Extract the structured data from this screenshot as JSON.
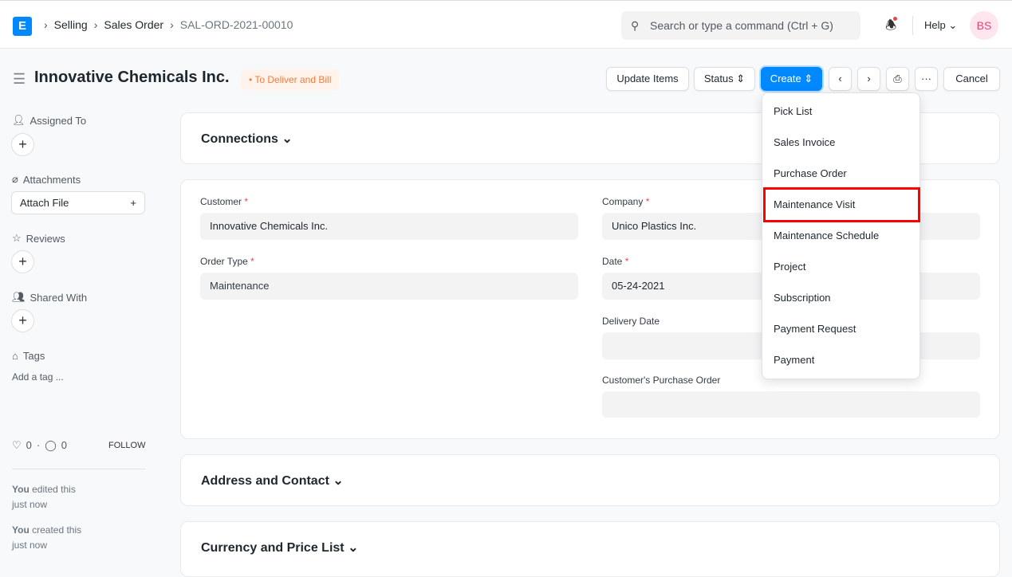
{
  "nav": {
    "logo": "E",
    "breadcrumbs": [
      "Selling",
      "Sales Order",
      "SAL-ORD-2021-00010"
    ],
    "search_placeholder": "Search or type a command (Ctrl + G)",
    "help": "Help",
    "avatar": "BS"
  },
  "page": {
    "title": "Innovative Chemicals Inc.",
    "status": "To Deliver and Bill",
    "status_color": "#f27c3a"
  },
  "toolbar": {
    "update_items": "Update Items",
    "status": "Status",
    "create": "Create",
    "cancel": "Cancel"
  },
  "create_menu": [
    "Pick List",
    "Sales Invoice",
    "Purchase Order",
    "Maintenance Visit",
    "Maintenance Schedule",
    "Project",
    "Subscription",
    "Payment Request",
    "Payment"
  ],
  "highlighted_item": "Maintenance Visit",
  "sidebar": {
    "assigned_to": "Assigned To",
    "attachments": "Attachments",
    "attach_file": "Attach File",
    "reviews": "Reviews",
    "shared_with": "Shared With",
    "tags": "Tags",
    "add_tag": "Add a tag ...",
    "likes": "0",
    "comments": "0",
    "follow": "FOLLOW",
    "activity": [
      {
        "who": "You",
        "what": " edited this",
        "when": "just now"
      },
      {
        "who": "You",
        "what": " created this",
        "when": "just now"
      }
    ]
  },
  "sections": {
    "connections": "Connections",
    "address": "Address and Contact",
    "currency": "Currency and Price List"
  },
  "form": {
    "customer_label": "Customer",
    "customer": "Innovative Chemicals Inc.",
    "order_type_label": "Order Type",
    "order_type": "Maintenance",
    "company_label": "Company",
    "company": "Unico Plastics Inc.",
    "date_label": "Date",
    "date": "05-24-2021",
    "delivery_date_label": "Delivery Date",
    "delivery_date": "",
    "po_label": "Customer's Purchase Order",
    "po": ""
  }
}
